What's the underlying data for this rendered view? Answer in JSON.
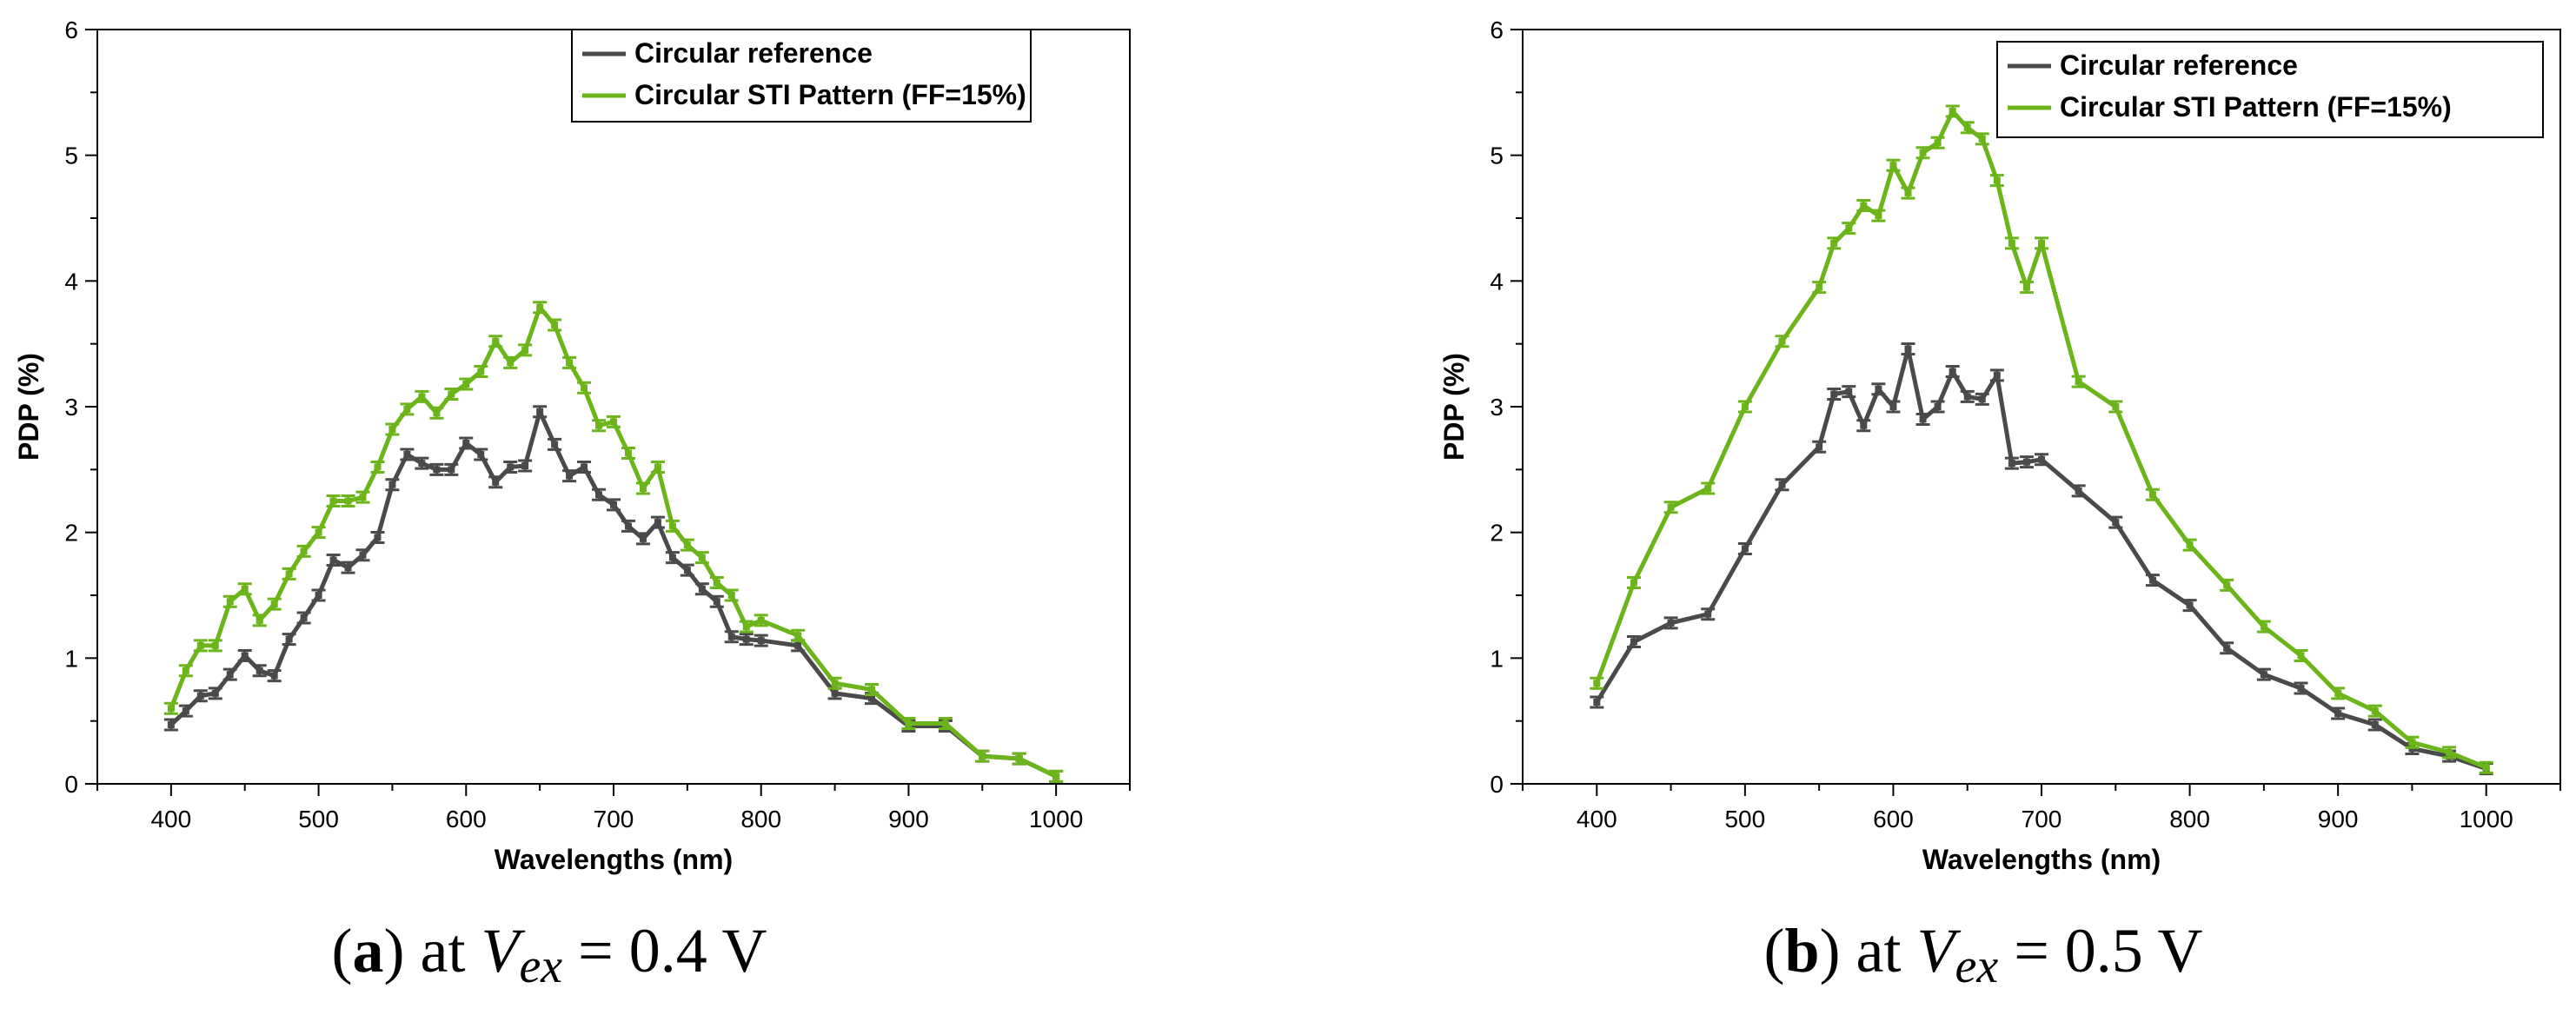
{
  "chart_data": [
    {
      "type": "line",
      "caption": {
        "paren_open": "(",
        "letter": "a",
        "paren_close": ")",
        "prefix": " at ",
        "var_main": "V",
        "var_sub": "ex",
        "suffix": " = 0.4 V"
      },
      "xlabel": "Wavelengths (nm)",
      "ylabel": "PDP (%)",
      "xlim": [
        350,
        1050
      ],
      "ylim": [
        0,
        6
      ],
      "xticks": [
        400,
        500,
        600,
        700,
        800,
        900,
        1000
      ],
      "yticks": [
        0,
        1,
        2,
        3,
        4,
        5,
        6
      ],
      "legend_position": "top-right",
      "series": [
        {
          "name": "Circular reference",
          "color": "#4a4a4a",
          "x": [
            400,
            410,
            420,
            430,
            440,
            450,
            460,
            470,
            480,
            490,
            500,
            510,
            520,
            530,
            540,
            550,
            560,
            570,
            580,
            590,
            600,
            610,
            620,
            630,
            640,
            650,
            660,
            670,
            680,
            690,
            700,
            710,
            720,
            730,
            740,
            750,
            760,
            770,
            780,
            790,
            800,
            825,
            850,
            875,
            900,
            925,
            950,
            975,
            1000
          ],
          "y": [
            0.47,
            0.58,
            0.7,
            0.72,
            0.87,
            1.02,
            0.9,
            0.86,
            1.15,
            1.32,
            1.5,
            1.78,
            1.72,
            1.82,
            1.96,
            2.38,
            2.62,
            2.55,
            2.5,
            2.5,
            2.71,
            2.62,
            2.4,
            2.52,
            2.53,
            2.96,
            2.7,
            2.45,
            2.52,
            2.3,
            2.22,
            2.05,
            1.95,
            2.08,
            1.8,
            1.7,
            1.55,
            1.45,
            1.17,
            1.15,
            1.14,
            1.1,
            0.72,
            0.68,
            0.46,
            0.46,
            0.22,
            0.2,
            0.06
          ]
        },
        {
          "name": "Circular STI Pattern (FF=15%)",
          "color": "#6bb51a",
          "x": [
            400,
            410,
            420,
            430,
            440,
            450,
            460,
            470,
            480,
            490,
            500,
            510,
            520,
            530,
            540,
            550,
            560,
            570,
            580,
            590,
            600,
            610,
            620,
            630,
            640,
            650,
            660,
            670,
            680,
            690,
            700,
            710,
            720,
            730,
            740,
            750,
            760,
            770,
            780,
            790,
            800,
            825,
            850,
            875,
            900,
            925,
            950,
            975,
            1000
          ],
          "y": [
            0.6,
            0.9,
            1.1,
            1.1,
            1.45,
            1.55,
            1.3,
            1.43,
            1.67,
            1.85,
            2.0,
            2.25,
            2.25,
            2.28,
            2.52,
            2.82,
            2.98,
            3.08,
            2.95,
            3.1,
            3.18,
            3.28,
            3.52,
            3.35,
            3.45,
            3.79,
            3.65,
            3.35,
            3.15,
            2.85,
            2.88,
            2.63,
            2.35,
            2.52,
            2.05,
            1.9,
            1.8,
            1.6,
            1.5,
            1.25,
            1.3,
            1.18,
            0.8,
            0.75,
            0.48,
            0.48,
            0.22,
            0.2,
            0.06
          ]
        }
      ]
    },
    {
      "type": "line",
      "caption": {
        "paren_open": "(",
        "letter": "b",
        "paren_close": ")",
        "prefix": " at ",
        "var_main": "V",
        "var_sub": "ex",
        "suffix": " = 0.5 V"
      },
      "xlabel": "Wavelengths (nm)",
      "ylabel": "PDP (%)",
      "xlim": [
        350,
        1050
      ],
      "ylim": [
        0,
        6
      ],
      "xticks": [
        400,
        500,
        600,
        700,
        800,
        900,
        1000
      ],
      "yticks": [
        0,
        1,
        2,
        3,
        4,
        5,
        6
      ],
      "legend_position": "top-right",
      "series": [
        {
          "name": "Circular reference",
          "color": "#4a4a4a",
          "x": [
            400,
            425,
            450,
            475,
            500,
            525,
            550,
            560,
            570,
            580,
            590,
            600,
            610,
            620,
            630,
            640,
            650,
            660,
            670,
            680,
            690,
            700,
            725,
            750,
            775,
            800,
            825,
            850,
            875,
            900,
            925,
            950,
            975,
            1000
          ],
          "y": [
            0.65,
            1.13,
            1.28,
            1.35,
            1.87,
            2.38,
            2.68,
            3.1,
            3.12,
            2.85,
            3.14,
            3.0,
            3.46,
            2.9,
            3.0,
            3.28,
            3.08,
            3.06,
            3.25,
            2.55,
            2.56,
            2.58,
            2.33,
            2.08,
            1.62,
            1.42,
            1.08,
            0.87,
            0.76,
            0.56,
            0.47,
            0.28,
            0.22,
            0.12
          ]
        },
        {
          "name": "Circular STI Pattern (FF=15%)",
          "color": "#6bb51a",
          "x": [
            400,
            425,
            450,
            475,
            500,
            525,
            550,
            560,
            570,
            580,
            590,
            600,
            610,
            620,
            630,
            640,
            650,
            660,
            670,
            680,
            690,
            700,
            725,
            750,
            775,
            800,
            825,
            850,
            875,
            900,
            925,
            950,
            975,
            1000
          ],
          "y": [
            0.8,
            1.6,
            2.2,
            2.35,
            3.0,
            3.52,
            3.95,
            4.3,
            4.42,
            4.6,
            4.52,
            4.92,
            4.7,
            5.02,
            5.1,
            5.35,
            5.22,
            5.13,
            4.8,
            4.3,
            3.95,
            4.3,
            3.2,
            3.0,
            2.3,
            1.9,
            1.58,
            1.25,
            1.02,
            0.72,
            0.58,
            0.33,
            0.25,
            0.13
          ]
        }
      ]
    }
  ]
}
